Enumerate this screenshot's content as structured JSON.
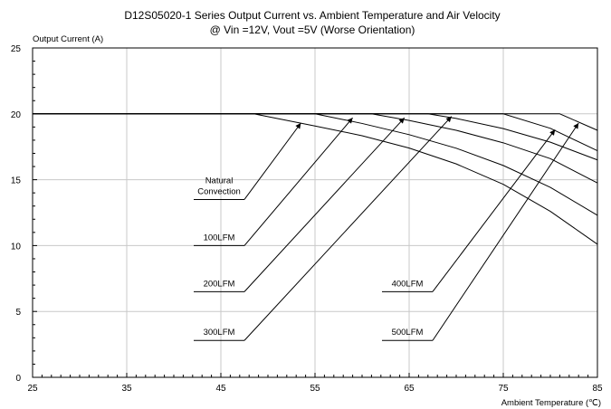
{
  "chart_data": {
    "type": "line",
    "title": "D12S05020-1 Series Output Current vs. Ambient Temperature and Air Velocity",
    "subtitle": "@ Vin =12V, Vout =5V (Worse Orientation)",
    "ylabel": "Output Current (A)",
    "xlabel": "Ambient Temperature (℃)",
    "xlim": [
      25,
      85
    ],
    "ylim": [
      0,
      25
    ],
    "xticks": [
      25,
      35,
      45,
      55,
      65,
      75,
      85
    ],
    "yticks": [
      0,
      5,
      10,
      15,
      20,
      25
    ],
    "grid": true,
    "series": [
      {
        "name": "Natural Convection",
        "x": [
          25,
          48.5,
          55,
          60,
          65,
          70,
          75,
          80,
          85
        ],
        "y": [
          20,
          20,
          19.08,
          18.34,
          17.4,
          16.2,
          14.65,
          12.6,
          10.1
        ]
      },
      {
        "name": "100LFM",
        "x": [
          25,
          55,
          60,
          65,
          70,
          75,
          80,
          85
        ],
        "y": [
          20,
          20,
          19.27,
          18.42,
          17.39,
          16.08,
          14.42,
          12.3
        ]
      },
      {
        "name": "200LFM",
        "x": [
          25,
          61,
          65,
          70,
          75,
          80,
          85
        ],
        "y": [
          20,
          20,
          19.5,
          18.75,
          17.8,
          16.6,
          14.75
        ]
      },
      {
        "name": "300LFM",
        "x": [
          25,
          67,
          70,
          75,
          80,
          85
        ],
        "y": [
          20,
          20,
          19.65,
          18.88,
          17.85,
          16.5
        ]
      },
      {
        "name": "400LFM",
        "x": [
          25,
          75,
          80,
          85
        ],
        "y": [
          20,
          20,
          18.9,
          17.2
        ]
      },
      {
        "name": "500LFM",
        "x": [
          25,
          81,
          85
        ],
        "y": [
          20,
          20,
          18.75
        ]
      }
    ],
    "annotations": [
      {
        "lines": [
          "Natural",
          "Convection"
        ],
        "arrow_from": [
          47.5,
          13.5
        ],
        "arrow_to": [
          53.5,
          19.3
        ]
      },
      {
        "lines": [
          "100LFM"
        ],
        "arrow_from": [
          47.5,
          10.0
        ],
        "arrow_to": [
          59.0,
          19.7
        ]
      },
      {
        "lines": [
          "200LFM"
        ],
        "arrow_from": [
          47.5,
          6.5
        ],
        "arrow_to": [
          64.5,
          19.7
        ]
      },
      {
        "lines": [
          "300LFM"
        ],
        "arrow_from": [
          47.5,
          2.8
        ],
        "arrow_to": [
          69.5,
          19.8
        ]
      },
      {
        "lines": [
          "400LFM"
        ],
        "arrow_from": [
          67.5,
          6.5
        ],
        "arrow_to": [
          80.5,
          18.8
        ]
      },
      {
        "lines": [
          "500LFM"
        ],
        "arrow_from": [
          67.5,
          2.8
        ],
        "arrow_to": [
          83.0,
          19.3
        ]
      }
    ]
  }
}
